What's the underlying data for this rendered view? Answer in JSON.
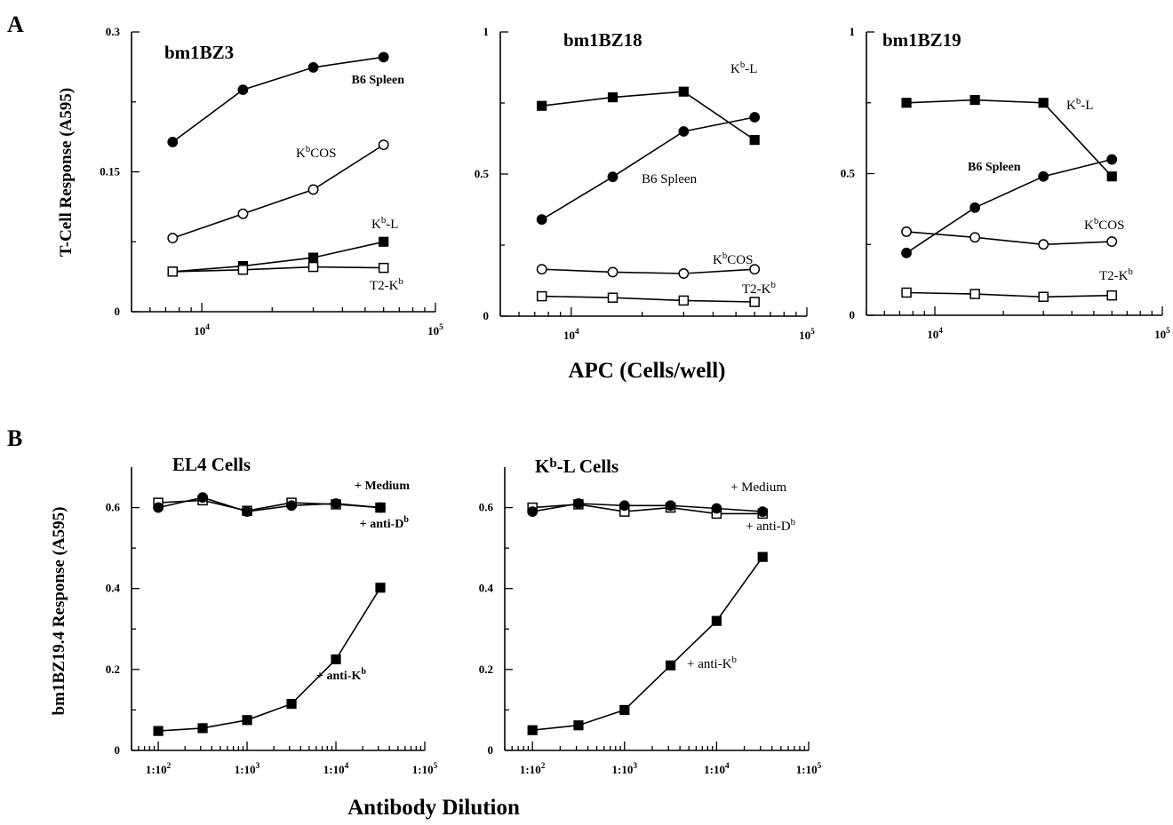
{
  "figure_labels": {
    "panel_a": "A",
    "panel_b": "B"
  },
  "axis_titles": {
    "a_y": "T-Cell Response (A595)",
    "a_x": "APC (Cells/well)",
    "b_y": "bm1BZ19.4 Response (A595)",
    "b_x": "Antibody Dilution"
  },
  "colors": {
    "ink": "#000000",
    "background": "#ffffff"
  },
  "chart_data": [
    {
      "type": "line",
      "title": "bm1BZ3",
      "xscale": "log",
      "xlim": [
        5000,
        100000
      ],
      "ylim": [
        0,
        0.3
      ],
      "xticks_labeled": [
        {
          "value": 10000,
          "base": "10",
          "exp": "4"
        },
        {
          "value": 100000,
          "base": "10",
          "exp": "5"
        }
      ],
      "yticks_labeled": [
        {
          "value": 0,
          "label": "0"
        },
        {
          "value": 0.15,
          "label": "0.15"
        },
        {
          "value": 0.3,
          "label": "0.3"
        }
      ],
      "series": [
        {
          "name": "B6 Spleen",
          "marker": "filled-circle",
          "x": [
            7500,
            15000,
            30000,
            60000
          ],
          "y": [
            0.182,
            0.238,
            0.262,
            0.273
          ]
        },
        {
          "name": "KbCOS",
          "marker": "open-circle",
          "x": [
            7500,
            15000,
            30000,
            60000
          ],
          "y": [
            0.079,
            0.105,
            0.131,
            0.179
          ]
        },
        {
          "name": "Kb-L",
          "marker": "filled-square",
          "x": [
            7500,
            15000,
            30000,
            60000
          ],
          "y": [
            0.043,
            0.049,
            0.058,
            0.075
          ]
        },
        {
          "name": "T2-Kb",
          "marker": "open-square",
          "x": [
            7500,
            15000,
            30000,
            60000
          ],
          "y": [
            0.043,
            0.045,
            0.048,
            0.047
          ]
        }
      ],
      "labels": [
        {
          "series": "B6 Spleen",
          "main": "B6 Spleen",
          "sup": "",
          "tail": ""
        },
        {
          "series": "KbCOS",
          "main": "K",
          "sup": "b",
          "tail": "COS"
        },
        {
          "series": "Kb-L",
          "main": "K",
          "sup": "b",
          "tail": "-L"
        },
        {
          "series": "T2-Kb",
          "main": "T2-K",
          "sup": "b",
          "tail": ""
        }
      ]
    },
    {
      "type": "line",
      "title": "bm1BZ18",
      "xscale": "log",
      "xlim": [
        5000,
        100000
      ],
      "ylim": [
        0,
        1
      ],
      "xticks_labeled": [
        {
          "value": 10000,
          "base": "10",
          "exp": "4"
        },
        {
          "value": 100000,
          "base": "10",
          "exp": "5"
        }
      ],
      "yticks_labeled": [
        {
          "value": 0,
          "label": "0"
        },
        {
          "value": 0.5,
          "label": "0.5"
        },
        {
          "value": 1,
          "label": "1"
        }
      ],
      "series": [
        {
          "name": "Kb-L",
          "marker": "filled-square",
          "x": [
            7500,
            15000,
            30000,
            60000
          ],
          "y": [
            0.74,
            0.77,
            0.79,
            0.62
          ]
        },
        {
          "name": "B6 Spleen",
          "marker": "filled-circle",
          "x": [
            7500,
            15000,
            30000,
            60000
          ],
          "y": [
            0.34,
            0.49,
            0.65,
            0.7
          ]
        },
        {
          "name": "KbCOS",
          "marker": "open-circle",
          "x": [
            7500,
            15000,
            30000,
            60000
          ],
          "y": [
            0.165,
            0.155,
            0.15,
            0.165
          ]
        },
        {
          "name": "T2-Kb",
          "marker": "open-square",
          "x": [
            7500,
            15000,
            30000,
            60000
          ],
          "y": [
            0.07,
            0.065,
            0.055,
            0.05
          ]
        }
      ],
      "labels": [
        {
          "series": "Kb-L",
          "main": "K",
          "sup": "b",
          "tail": "-L"
        },
        {
          "series": "B6 Spleen",
          "main": "B6 Spleen",
          "sup": "",
          "tail": ""
        },
        {
          "series": "KbCOS",
          "main": "K",
          "sup": "b",
          "tail": "COS"
        },
        {
          "series": "T2-Kb",
          "main": "T2-K",
          "sup": "b",
          "tail": ""
        }
      ]
    },
    {
      "type": "line",
      "title": "bm1BZ19",
      "xscale": "log",
      "xlim": [
        5000,
        100000
      ],
      "ylim": [
        0,
        1
      ],
      "xticks_labeled": [
        {
          "value": 10000,
          "base": "10",
          "exp": "4"
        },
        {
          "value": 100000,
          "base": "10",
          "exp": "5"
        }
      ],
      "yticks_labeled": [
        {
          "value": 0,
          "label": "0"
        },
        {
          "value": 0.5,
          "label": "0.5"
        },
        {
          "value": 1,
          "label": "1"
        }
      ],
      "series": [
        {
          "name": "Kb-L",
          "marker": "filled-square",
          "x": [
            7500,
            15000,
            30000,
            60000
          ],
          "y": [
            0.75,
            0.76,
            0.75,
            0.49
          ]
        },
        {
          "name": "B6 Spleen",
          "marker": "filled-circle",
          "x": [
            7500,
            15000,
            30000,
            60000
          ],
          "y": [
            0.22,
            0.38,
            0.49,
            0.55
          ]
        },
        {
          "name": "KbCOS",
          "marker": "open-circle",
          "x": [
            7500,
            15000,
            30000,
            60000
          ],
          "y": [
            0.295,
            0.275,
            0.25,
            0.26
          ]
        },
        {
          "name": "T2-Kb",
          "marker": "open-square",
          "x": [
            7500,
            15000,
            30000,
            60000
          ],
          "y": [
            0.08,
            0.075,
            0.065,
            0.07
          ]
        }
      ],
      "labels": [
        {
          "series": "Kb-L",
          "main": "K",
          "sup": "b",
          "tail": "-L"
        },
        {
          "series": "B6 Spleen",
          "main": "B6 Spleen",
          "sup": "",
          "tail": ""
        },
        {
          "series": "KbCOS",
          "main": "K",
          "sup": "b",
          "tail": "COS"
        },
        {
          "series": "T2-Kb",
          "main": "T2-K",
          "sup": "b",
          "tail": ""
        }
      ]
    },
    {
      "type": "line",
      "title": "EL4 Cells",
      "xscale": "log",
      "xlim": [
        50,
        100000
      ],
      "ylim": [
        0,
        0.7
      ],
      "xticks_labeled": [
        {
          "value": 100,
          "base": "1:10",
          "exp": "2"
        },
        {
          "value": 1000,
          "base": "1:10",
          "exp": "3"
        },
        {
          "value": 10000,
          "base": "1:10",
          "exp": "4"
        },
        {
          "value": 100000,
          "base": "1:10",
          "exp": "5"
        }
      ],
      "yticks_labeled": [
        {
          "value": 0,
          "label": "0"
        },
        {
          "value": 0.2,
          "label": "0.2"
        },
        {
          "value": 0.4,
          "label": "0.4"
        },
        {
          "value": 0.6,
          "label": "0.6"
        }
      ],
      "series": [
        {
          "name": "+ Medium",
          "marker": "open-square",
          "x": [
            100,
            316,
            1000,
            3162,
            10000,
            31623
          ],
          "y": [
            0.612,
            0.618,
            0.592,
            0.612,
            0.608,
            0.6
          ]
        },
        {
          "name": "+ anti-Db",
          "marker": "filled-circle",
          "x": [
            100,
            316,
            1000,
            3162,
            10000,
            31623
          ],
          "y": [
            0.6,
            0.625,
            0.59,
            0.605,
            0.61,
            0.6
          ]
        },
        {
          "name": "+ anti-Kb",
          "marker": "filled-square",
          "x": [
            100,
            316,
            1000,
            3162,
            10000,
            31623
          ],
          "y": [
            0.048,
            0.055,
            0.075,
            0.115,
            0.225,
            0.402
          ]
        }
      ],
      "labels": [
        {
          "series": "+ Medium",
          "main": "+ Medium",
          "sup": "",
          "tail": ""
        },
        {
          "series": "+ anti-Db",
          "main": "+ anti-D",
          "sup": "b",
          "tail": ""
        },
        {
          "series": "+ anti-Kb",
          "main": "+ anti-K",
          "sup": "b",
          "tail": ""
        }
      ]
    },
    {
      "type": "line",
      "title": "Kb-L Cells",
      "title_parts": {
        "main": "K",
        "sup": "b",
        "tail": "-L Cells"
      },
      "xscale": "log",
      "xlim": [
        50,
        100000
      ],
      "ylim": [
        0,
        0.7
      ],
      "xticks_labeled": [
        {
          "value": 100,
          "base": "1:10",
          "exp": "2"
        },
        {
          "value": 1000,
          "base": "1:10",
          "exp": "3"
        },
        {
          "value": 10000,
          "base": "1:10",
          "exp": "4"
        },
        {
          "value": 100000,
          "base": "1:10",
          "exp": "5"
        }
      ],
      "yticks_labeled": [
        {
          "value": 0,
          "label": "0"
        },
        {
          "value": 0.2,
          "label": "0.2"
        },
        {
          "value": 0.4,
          "label": "0.4"
        },
        {
          "value": 0.6,
          "label": "0.6"
        }
      ],
      "series": [
        {
          "name": "+ Medium",
          "marker": "open-square",
          "x": [
            100,
            316,
            1000,
            3162,
            10000,
            31623
          ],
          "y": [
            0.6,
            0.608,
            0.59,
            0.6,
            0.585,
            0.585
          ]
        },
        {
          "name": "+ anti-Db",
          "marker": "filled-circle",
          "x": [
            100,
            316,
            1000,
            3162,
            10000,
            31623
          ],
          "y": [
            0.59,
            0.61,
            0.605,
            0.605,
            0.598,
            0.59
          ]
        },
        {
          "name": "+ anti-Kb",
          "marker": "filled-square",
          "x": [
            100,
            316,
            1000,
            3162,
            10000,
            31623
          ],
          "y": [
            0.05,
            0.062,
            0.1,
            0.21,
            0.32,
            0.478
          ]
        }
      ],
      "labels": [
        {
          "series": "+ Medium",
          "main": "+ Medium",
          "sup": "",
          "tail": ""
        },
        {
          "series": "+ anti-Db",
          "main": "+ anti-D",
          "sup": "b",
          "tail": ""
        },
        {
          "series": "+ anti-Kb",
          "main": "+ anti-K",
          "sup": "b",
          "tail": ""
        }
      ]
    }
  ]
}
